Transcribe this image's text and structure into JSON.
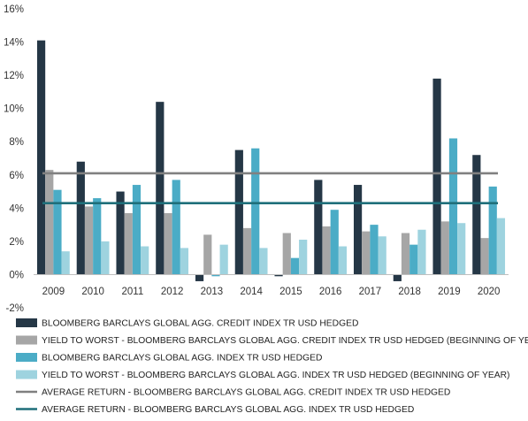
{
  "chart_data": {
    "type": "bar",
    "categories": [
      "2009",
      "2010",
      "2011",
      "2012",
      "2013",
      "2014",
      "2015",
      "2016",
      "2017",
      "2018",
      "2019",
      "2020"
    ],
    "series": [
      {
        "name": "BLOOMBERG BARCLAYS GLOBAL AGG. CREDIT INDEX TR USD HEDGED",
        "color": "#253746",
        "values": [
          14.1,
          6.8,
          5.0,
          10.4,
          -0.4,
          7.5,
          -0.1,
          5.7,
          5.4,
          -0.4,
          11.8,
          7.2
        ]
      },
      {
        "name": "YIELD TO WORST - BLOOMBERG BARCLAYS GLOBAL AGG. CREDIT INDEX TR USD HEDGED (BEGINNING OF YEAR)",
        "color": "#A6A6A6",
        "values": [
          6.3,
          4.1,
          3.7,
          3.7,
          2.4,
          2.8,
          2.5,
          2.9,
          2.6,
          2.5,
          3.2,
          2.2
        ]
      },
      {
        "name": "BLOOMBERG BARCLAYS GLOBAL AGG. INDEX TR USD HEDGED",
        "color": "#4BACC6",
        "values": [
          5.1,
          4.6,
          5.4,
          5.7,
          -0.1,
          7.6,
          1.0,
          3.9,
          3.0,
          1.8,
          8.2,
          5.3
        ]
      },
      {
        "name": "YIELD TO WORST - BLOOMBERG BARCLAYS GLOBAL AGG. INDEX TR USD HEDGED (BEGINNING OF YEAR)",
        "color": "#9ED3DF",
        "values": [
          1.4,
          2.0,
          1.7,
          1.6,
          1.8,
          1.6,
          2.1,
          1.7,
          2.3,
          2.7,
          3.1,
          3.4
        ]
      }
    ],
    "lines": [
      {
        "name": "AVERAGE RETURN - BLOOMBERG BARCLAYS GLOBAL AGG. CREDIT INDEX TR USD HEDGED",
        "color": "#808080",
        "value": 6.1
      },
      {
        "name": "AVERAGE RETURN - BLOOMBERG BARCLAYS GLOBAL AGG. INDEX TR USD HEDGED",
        "color": "#1F6F7A",
        "value": 4.3
      }
    ],
    "y_ticks": [
      "16%",
      "14%",
      "12%",
      "10%",
      "8%",
      "6%",
      "4%",
      "2%",
      "0%",
      "-2%"
    ],
    "ylim": [
      -2,
      16
    ],
    "y_tick_step": 2,
    "grid": false,
    "legend_position": "bottom",
    "title": "",
    "xlabel": "",
    "ylabel": ""
  }
}
